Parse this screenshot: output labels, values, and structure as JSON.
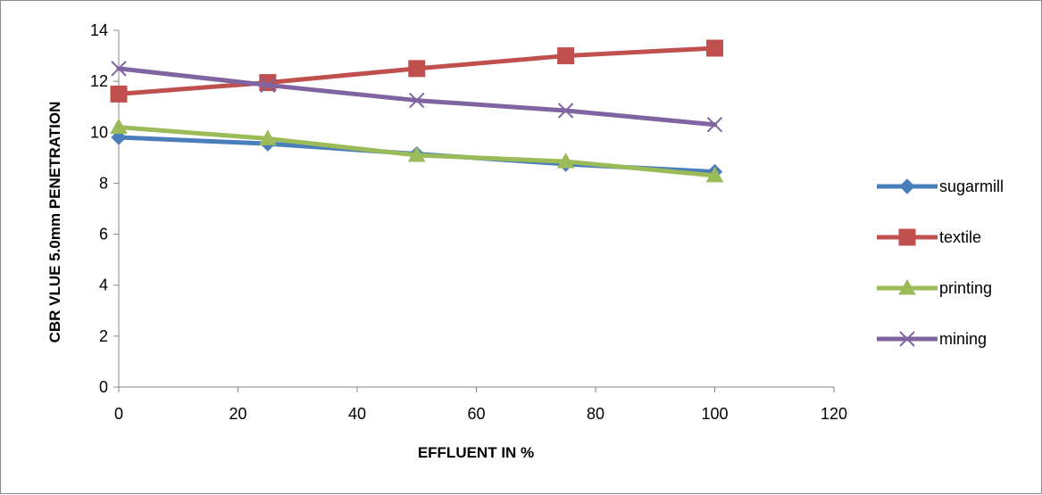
{
  "chart_data": {
    "type": "line",
    "title": "",
    "xlabel": "EFFLUENT IN %",
    "ylabel": "CBR VLUE 5.0mm PENETRATION",
    "xlim": [
      0,
      120
    ],
    "ylim": [
      0,
      14
    ],
    "x_ticks": [
      0,
      20,
      40,
      60,
      80,
      100,
      120
    ],
    "y_ticks": [
      0,
      2,
      4,
      6,
      8,
      10,
      12,
      14
    ],
    "grid": false,
    "legend_position": "right",
    "x": [
      0,
      25,
      50,
      75,
      100
    ],
    "series": [
      {
        "name": "sugarmill",
        "values": [
          9.8,
          9.55,
          9.15,
          8.75,
          8.45
        ],
        "color": "#4a7ebb",
        "marker": "diamond"
      },
      {
        "name": "textile",
        "values": [
          11.5,
          11.95,
          12.5,
          13.0,
          13.3
        ],
        "color": "#c0504d",
        "marker": "square"
      },
      {
        "name": "printing",
        "values": [
          10.2,
          9.75,
          9.1,
          8.85,
          8.3
        ],
        "color": "#9bbb59",
        "marker": "triangle"
      },
      {
        "name": "mining",
        "values": [
          12.5,
          11.85,
          11.25,
          10.85,
          10.3
        ],
        "color": "#8064a2",
        "marker": "x"
      }
    ]
  }
}
